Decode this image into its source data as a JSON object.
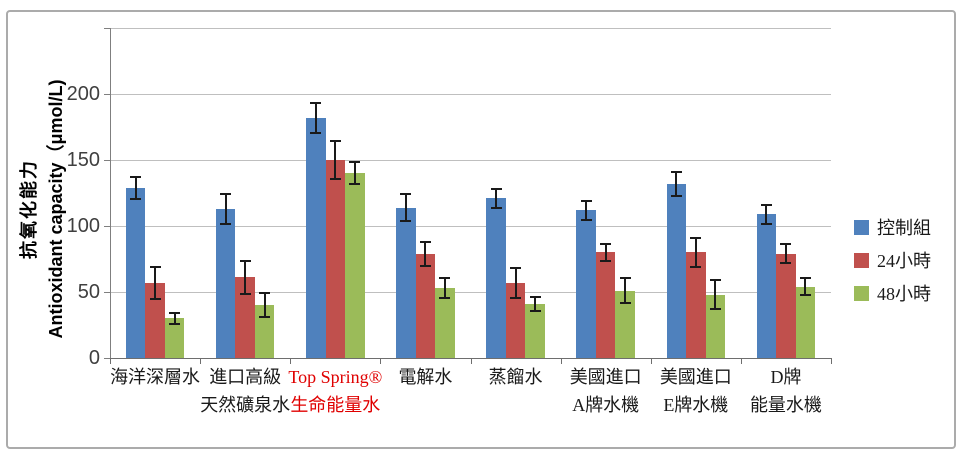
{
  "chart_data": {
    "type": "bar",
    "title": "",
    "ylabel_line1": "抗氧化能力",
    "ylabel_line2": "Antioxidant capacity（μmol/L)",
    "ylim": [
      0,
      250
    ],
    "ytick_step": 50,
    "ytick_labels": [
      "0",
      "50",
      "100",
      "150",
      "200"
    ],
    "grid": true,
    "legend_position": "right",
    "categories": [
      {
        "lines": [
          "海洋深層水"
        ],
        "highlight": false
      },
      {
        "lines": [
          "進口高級",
          "天然礦泉水"
        ],
        "highlight": false
      },
      {
        "lines": [
          "Top Spring®",
          "生命能量水"
        ],
        "highlight": true
      },
      {
        "lines": [
          "電解水"
        ],
        "highlight": false
      },
      {
        "lines": [
          "蒸餾水"
        ],
        "highlight": false
      },
      {
        "lines": [
          "美國進口",
          "A牌水機"
        ],
        "highlight": false
      },
      {
        "lines": [
          "美國進口",
          "E牌水機"
        ],
        "highlight": false
      },
      {
        "lines": [
          "D牌",
          "能量水機"
        ],
        "highlight": false
      }
    ],
    "series": [
      {
        "name": "控制組",
        "color": "#4F81BD",
        "values": [
          129,
          113,
          182,
          114,
          121,
          112,
          132,
          109
        ],
        "errors": [
          9,
          12,
          12,
          11,
          8,
          8,
          10,
          8
        ]
      },
      {
        "name": "24小時",
        "color": "#C0504D",
        "values": [
          57,
          61,
          150,
          79,
          57,
          80,
          80,
          79
        ],
        "errors": [
          13,
          13,
          15,
          10,
          12,
          7,
          12,
          8
        ]
      },
      {
        "name": "48小時",
        "color": "#9BBB59",
        "values": [
          30,
          40,
          140,
          53,
          41,
          51,
          48,
          54
        ],
        "errors": [
          5,
          10,
          9,
          8,
          6,
          10,
          12,
          7
        ]
      }
    ],
    "highlight_color": "#E00000",
    "colors": {
      "gridline": "#BFBFBF",
      "axis": "#7F7F7F",
      "error_bar": "#1A1A1A",
      "tick_label": "#3F3F3F",
      "category_label": "#1A1A1A"
    }
  }
}
